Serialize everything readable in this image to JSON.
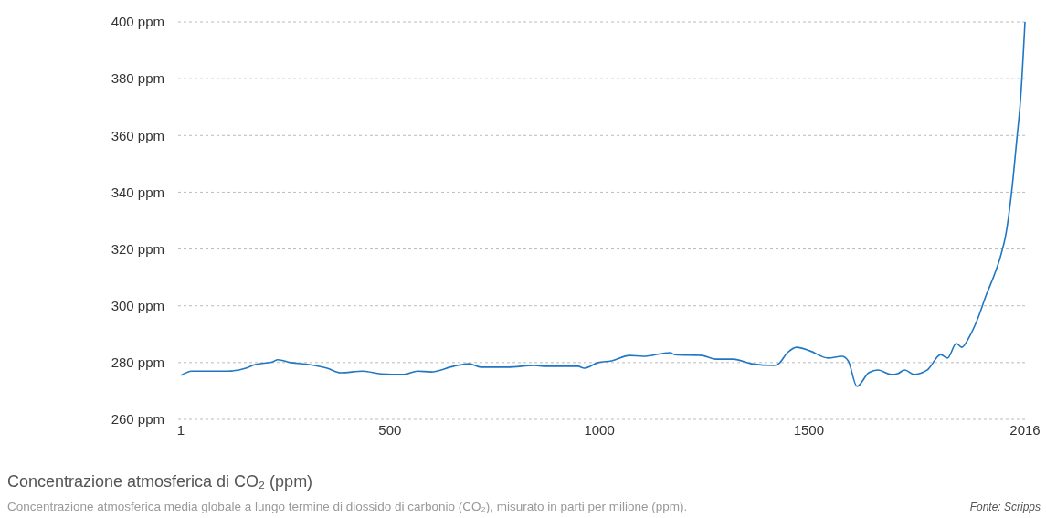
{
  "chart_data": {
    "type": "line",
    "title": "Concentrazione atmosferica di CO₂ (ppm)",
    "subtitle": "Concentrazione atmosferica media globale a lungo termine di diossido di carbonio (CO₂), misurato in parti per milione (ppm).",
    "annotations": [
      "Fonte: Scripps"
    ],
    "xlim": [
      1,
      2016
    ],
    "xticks": [
      1,
      500,
      1000,
      1500,
      2016
    ],
    "ylim": [
      260,
      400
    ],
    "yticks": [
      {
        "value": 260,
        "label": "260 ppm"
      },
      {
        "value": 280,
        "label": "280 ppm"
      },
      {
        "value": 300,
        "label": "300 ppm"
      },
      {
        "value": 320,
        "label": "320 ppm"
      },
      {
        "value": 340,
        "label": "340 ppm"
      },
      {
        "value": 360,
        "label": "360 ppm"
      },
      {
        "value": 380,
        "label": "380 ppm"
      },
      {
        "value": 400,
        "label": "400 ppm"
      }
    ],
    "grid": "y",
    "marker": "none",
    "line_style": "solid",
    "x": [
      1,
      27,
      113,
      156,
      178,
      221,
      232,
      264,
      307,
      350,
      382,
      436,
      479,
      533,
      566,
      598,
      652,
      689,
      717,
      781,
      846,
      867,
      949,
      964,
      997,
      1029,
      1072,
      1104,
      1169,
      1180,
      1244,
      1277,
      1320,
      1363,
      1417,
      1428,
      1449,
      1471,
      1503,
      1546,
      1579,
      1594,
      1615,
      1643,
      1665,
      1697,
      1712,
      1729,
      1751,
      1783,
      1815,
      1831,
      1852,
      1865,
      1885,
      1902,
      1924,
      1941,
      1958,
      1971,
      1984,
      1997,
      2005,
      2016
    ],
    "series": [
      {
        "color": "#1f77c4",
        "values": [
          275.5,
          277,
          277,
          278,
          279.3,
          280.3,
          281,
          280,
          279.3,
          278,
          276.4,
          277,
          276,
          275.8,
          277,
          276.7,
          278.7,
          279.6,
          278.4,
          278.4,
          279,
          278.7,
          278.7,
          278,
          280,
          280.6,
          282.5,
          282.2,
          283.5,
          282.8,
          282.5,
          281.2,
          281.2,
          279.6,
          279,
          279.6,
          283.5,
          285.4,
          284.1,
          281.6,
          282.2,
          280.6,
          271.6,
          276.4,
          277.4,
          275.8,
          276.1,
          277.4,
          275.8,
          277.4,
          282.8,
          281.6,
          286.7,
          285.4,
          289.6,
          295,
          304,
          310.2,
          317.6,
          325.7,
          340,
          359.5,
          372,
          400
        ]
      }
    ]
  }
}
